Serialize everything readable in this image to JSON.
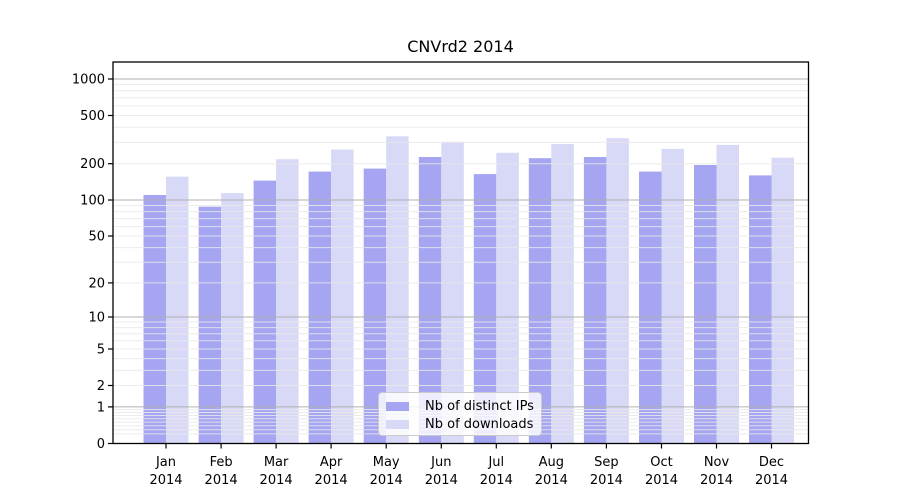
{
  "figure": {
    "title": "CNVrd2 2014"
  },
  "legend": {
    "position": "lower center",
    "items": [
      {
        "label": "Nb of distinct IPs",
        "color": "#a5a5f2"
      },
      {
        "label": "Nb of downloads",
        "color": "#d8d8f7"
      }
    ]
  },
  "chart_data": {
    "type": "bar",
    "title": "CNVrd2 2014",
    "categories": [
      "Jan",
      "Feb",
      "Mar",
      "Apr",
      "May",
      "Jun",
      "Jul",
      "Aug",
      "Sep",
      "Oct",
      "Nov",
      "Dec"
    ],
    "category_year": "2014",
    "series": [
      {
        "name": "Nb of distinct IPs",
        "color": "#a5a5f2",
        "values": [
          110,
          88,
          145,
          172,
          182,
          227,
          164,
          222,
          227,
          172,
          195,
          160
        ]
      },
      {
        "name": "Nb of downloads",
        "color": "#d8d8f7",
        "values": [
          156,
          114,
          218,
          262,
          337,
          303,
          246,
          291,
          325,
          265,
          286,
          224
        ]
      }
    ],
    "xlabel": "",
    "ylabel": "",
    "y_scale": "log1p",
    "ylim": [
      0,
      1380
    ],
    "y_tick_values": [
      0,
      1,
      2,
      5,
      10,
      20,
      50,
      100,
      200,
      500,
      1000
    ],
    "y_major_gridline_values": [
      1,
      10,
      100,
      1000
    ],
    "grid": "both",
    "grid_major_color": "#b0b0b0",
    "grid_minor_color": "#e9e9e9",
    "axis_color": "#000000",
    "tick_label_color": "#000000"
  }
}
